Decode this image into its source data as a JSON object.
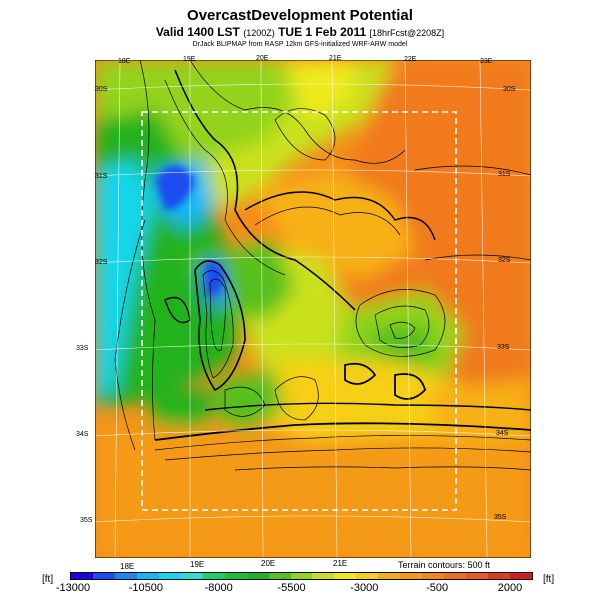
{
  "title": "OvercastDevelopment Potential",
  "subtitle": {
    "main": "Valid 1400 LST",
    "utc": "(1200Z)",
    "date": "TUE 1 Feb 2011",
    "run": "[18hrFcst@2208Z]"
  },
  "credit": "DrJack BLIPMAP from RASP 12km GFS-initialized WRF-ARW model",
  "map": {
    "lon_labels_top": [
      "18E",
      "19E",
      "20E",
      "21E",
      "22E",
      "23E"
    ],
    "lon_labels_bottom": [
      "18E",
      "19E",
      "20E",
      "21E"
    ],
    "lat_labels_left": [
      "30S",
      "31S",
      "32S",
      "33S",
      "34S",
      "35S"
    ],
    "lat_labels_right": [
      "30S",
      "31S",
      "32S",
      "33S",
      "34S",
      "35S"
    ],
    "terrain_note": "Terrain contours: 500 ft"
  },
  "colorbar": {
    "unit": "[ft]",
    "tick_labels": [
      "-13000",
      "-10500",
      "-8000",
      "-5500",
      "-3000",
      "-500",
      "2000"
    ],
    "colors": [
      "#1f00e6",
      "#1e4cf0",
      "#1e86f2",
      "#12b7f5",
      "#13d6ea",
      "#2ee0cc",
      "#1bd06a",
      "#1cbf38",
      "#20b21f",
      "#57c01c",
      "#93d31c",
      "#c9e11c",
      "#efea1a",
      "#f6cf16",
      "#f7b014",
      "#f59a16",
      "#f18719",
      "#ed711d",
      "#e85a23",
      "#de3a22",
      "#d01e1e"
    ]
  }
}
